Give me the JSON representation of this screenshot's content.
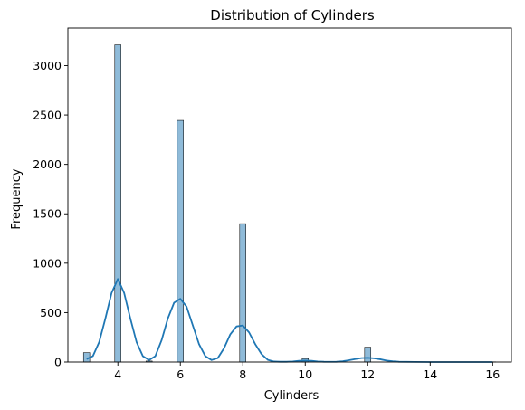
{
  "chart_data": {
    "type": "bar",
    "title": "Distribution of Cylinders",
    "xlabel": "Cylinders",
    "ylabel": "Frequency",
    "xlim": [
      2.4,
      16.6
    ],
    "ylim": [
      0,
      3380
    ],
    "x_ticks": [
      "4",
      "6",
      "8",
      "10",
      "12",
      "14",
      "16"
    ],
    "y_ticks": [
      "0",
      "500",
      "1000",
      "1500",
      "2000",
      "2500",
      "3000"
    ],
    "bin_width": 0.2,
    "bar_color": "#1f77b4",
    "bars": [
      {
        "x_start": 2.9,
        "x_end": 3.1,
        "value": 95
      },
      {
        "x_start": 3.9,
        "x_end": 4.1,
        "value": 3210
      },
      {
        "x_start": 4.9,
        "x_end": 5.1,
        "value": 10
      },
      {
        "x_start": 5.9,
        "x_end": 6.1,
        "value": 2445
      },
      {
        "x_start": 7.9,
        "x_end": 8.1,
        "value": 1400
      },
      {
        "x_start": 9.9,
        "x_end": 10.1,
        "value": 35
      },
      {
        "x_start": 11.9,
        "x_end": 12.1,
        "value": 150
      },
      {
        "x_start": 15.9,
        "x_end": 16.1,
        "value": 2
      }
    ],
    "kde": {
      "x": [
        3,
        3.2,
        3.4,
        3.6,
        3.8,
        4,
        4.2,
        4.4,
        4.6,
        4.8,
        5,
        5.2,
        5.4,
        5.6,
        5.8,
        6,
        6.2,
        6.4,
        6.6,
        6.8,
        7,
        7.2,
        7.4,
        7.6,
        7.8,
        8,
        8.2,
        8.4,
        8.6,
        8.8,
        9,
        9.2,
        9.4,
        9.6,
        9.8,
        10,
        10.2,
        10.4,
        10.6,
        10.8,
        11,
        11.2,
        11.4,
        11.6,
        11.8,
        12,
        12.2,
        12.4,
        12.6,
        12.8,
        13,
        13.5,
        14,
        14.5,
        15,
        15.5,
        16
      ],
      "y": [
        30,
        60,
        200,
        440,
        700,
        840,
        700,
        440,
        200,
        60,
        20,
        60,
        220,
        440,
        600,
        640,
        560,
        370,
        180,
        60,
        20,
        40,
        140,
        280,
        360,
        370,
        300,
        180,
        80,
        22,
        5,
        3,
        3,
        6,
        12,
        15,
        12,
        6,
        3,
        2,
        3,
        8,
        18,
        30,
        40,
        42,
        38,
        28,
        15,
        8,
        3,
        1,
        0,
        0,
        0,
        0,
        0
      ]
    }
  }
}
